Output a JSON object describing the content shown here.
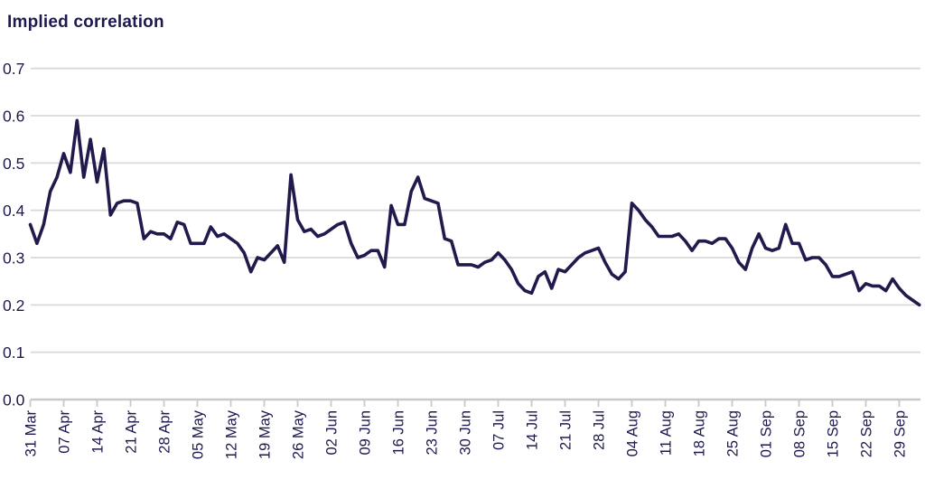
{
  "header": {
    "title": "Implied correlation"
  },
  "chart_data": {
    "type": "line",
    "title": "Implied correlation",
    "ylabel": "",
    "xlabel": "",
    "ylim": [
      0.0,
      0.7
    ],
    "y_tick_labels": [
      "0.7",
      "0.6",
      "0.5",
      "0.4",
      "0.3",
      "0.2",
      "0.1",
      "0.0"
    ],
    "x_tick_labels": [
      "31 Mar",
      "07 Apr",
      "14 Apr",
      "21 Apr",
      "28 Apr",
      "05 May",
      "12 May",
      "19 May",
      "26 May",
      "02 Jun",
      "09 Jun",
      "16 Jun",
      "23 Jun",
      "30 Jun",
      "07 Jul",
      "14 Jul",
      "21 Jul",
      "28 Jul",
      "04 Aug",
      "11 Aug",
      "18 Aug",
      "25 Aug",
      "01 Sep",
      "08 Sep",
      "15 Sep",
      "22 Sep",
      "29 Sep"
    ],
    "legend": "none",
    "grid": "horizontal",
    "series": [
      {
        "name": "Implied correlation",
        "dates": [
          "31 Mar",
          "01 Apr",
          "02 Apr",
          "03 Apr",
          "04 Apr",
          "07 Apr",
          "08 Apr",
          "09 Apr",
          "10 Apr",
          "11 Apr",
          "14 Apr",
          "15 Apr",
          "16 Apr",
          "17 Apr",
          "18 Apr",
          "21 Apr",
          "22 Apr",
          "23 Apr",
          "24 Apr",
          "25 Apr",
          "28 Apr",
          "29 Apr",
          "30 Apr",
          "01 May",
          "02 May",
          "05 May",
          "06 May",
          "07 May",
          "08 May",
          "09 May",
          "12 May",
          "13 May",
          "14 May",
          "15 May",
          "16 May",
          "19 May",
          "20 May",
          "21 May",
          "22 May",
          "23 May",
          "26 May",
          "27 May",
          "28 May",
          "29 May",
          "30 May",
          "02 Jun",
          "03 Jun",
          "04 Jun",
          "05 Jun",
          "06 Jun",
          "09 Jun",
          "10 Jun",
          "11 Jun",
          "12 Jun",
          "13 Jun",
          "16 Jun",
          "17 Jun",
          "18 Jun",
          "19 Jun",
          "20 Jun",
          "23 Jun",
          "24 Jun",
          "25 Jun",
          "26 Jun",
          "27 Jun",
          "30 Jun",
          "01 Jul",
          "02 Jul",
          "03 Jul",
          "04 Jul",
          "07 Jul",
          "08 Jul",
          "09 Jul",
          "10 Jul",
          "11 Jul",
          "14 Jul",
          "15 Jul",
          "16 Jul",
          "17 Jul",
          "18 Jul",
          "21 Jul",
          "22 Jul",
          "23 Jul",
          "24 Jul",
          "25 Jul",
          "28 Jul",
          "29 Jul",
          "30 Jul",
          "31 Jul",
          "01 Aug",
          "04 Aug",
          "05 Aug",
          "06 Aug",
          "07 Aug",
          "08 Aug",
          "11 Aug",
          "12 Aug",
          "13 Aug",
          "14 Aug",
          "15 Aug",
          "18 Aug",
          "19 Aug",
          "20 Aug",
          "21 Aug",
          "22 Aug",
          "25 Aug",
          "26 Aug",
          "27 Aug",
          "28 Aug",
          "29 Aug",
          "01 Sep",
          "02 Sep",
          "03 Sep",
          "04 Sep",
          "05 Sep",
          "08 Sep",
          "09 Sep",
          "10 Sep",
          "11 Sep",
          "12 Sep",
          "15 Sep",
          "16 Sep",
          "17 Sep",
          "18 Sep",
          "19 Sep",
          "22 Sep",
          "23 Sep",
          "24 Sep",
          "25 Sep",
          "26 Sep",
          "29 Sep",
          "30 Sep",
          "01 Oct",
          "02 Oct"
        ],
        "values": [
          0.37,
          0.33,
          0.37,
          0.44,
          0.47,
          0.52,
          0.48,
          0.59,
          0.47,
          0.55,
          0.46,
          0.53,
          0.39,
          0.415,
          0.42,
          0.42,
          0.415,
          0.34,
          0.355,
          0.35,
          0.35,
          0.34,
          0.375,
          0.37,
          0.33,
          0.33,
          0.33,
          0.365,
          0.345,
          0.35,
          0.34,
          0.33,
          0.31,
          0.27,
          0.3,
          0.295,
          0.31,
          0.325,
          0.29,
          0.475,
          0.38,
          0.355,
          0.36,
          0.345,
          0.35,
          0.36,
          0.37,
          0.375,
          0.33,
          0.3,
          0.305,
          0.315,
          0.315,
          0.28,
          0.41,
          0.37,
          0.37,
          0.44,
          0.47,
          0.425,
          0.42,
          0.415,
          0.34,
          0.335,
          0.285,
          0.285,
          0.285,
          0.28,
          0.29,
          0.295,
          0.31,
          0.295,
          0.275,
          0.245,
          0.23,
          0.225,
          0.26,
          0.27,
          0.235,
          0.275,
          0.27,
          0.285,
          0.3,
          0.31,
          0.315,
          0.32,
          0.29,
          0.265,
          0.255,
          0.27,
          0.415,
          0.4,
          0.38,
          0.365,
          0.345,
          0.345,
          0.345,
          0.35,
          0.335,
          0.315,
          0.335,
          0.335,
          0.33,
          0.34,
          0.34,
          0.32,
          0.29,
          0.275,
          0.32,
          0.35,
          0.32,
          0.315,
          0.32,
          0.37,
          0.33,
          0.33,
          0.295,
          0.3,
          0.3,
          0.285,
          0.26,
          0.26,
          0.265,
          0.27,
          0.23,
          0.245,
          0.24,
          0.24,
          0.23,
          0.255,
          0.235,
          0.22,
          0.21,
          0.2
        ]
      }
    ],
    "colors": {
      "line": "#211a4d",
      "grid": "#d9d9d9",
      "axis": "#c9c9c9",
      "text": "#1c1a4e",
      "background": "#ffffff"
    }
  }
}
